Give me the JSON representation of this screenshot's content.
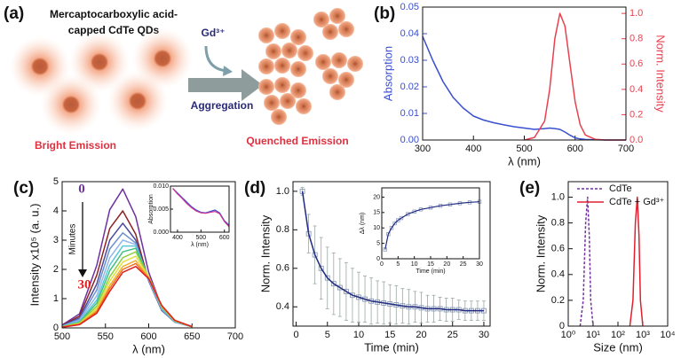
{
  "schematic": {
    "panel": "(a)",
    "title_lines": [
      "Mercaptocarboxylic acid-",
      "capped CdTe QDs"
    ],
    "ion": "Gd³⁺",
    "arrow_label": "Aggregation",
    "left_caption": "Bright Emission",
    "right_caption": "Quenched Emission"
  },
  "chart_data": [
    {
      "type": "line",
      "panel": "(b)",
      "xlabel": "λ (nm)",
      "ylabel": "Absorption",
      "y2label": "Norm. Intensity",
      "x": [
        300,
        320,
        340,
        360,
        380,
        400,
        420,
        440,
        460,
        480,
        500,
        520,
        540,
        550,
        560,
        570,
        580,
        590,
        600,
        610,
        620,
        640,
        660,
        700
      ],
      "xlim": [
        300,
        700
      ],
      "xticks": [
        300,
        400,
        500,
        600,
        700
      ],
      "ylim": [
        0,
        0.05
      ],
      "yticks": [
        {
          "value": 0,
          "label": "0.00"
        },
        {
          "value": 0.01,
          "label": "0.01"
        },
        {
          "value": 0.02,
          "label": "0.02"
        },
        {
          "value": 0.03,
          "label": "0.03"
        },
        {
          "value": 0.04,
          "label": "0.04"
        },
        {
          "value": 0.05,
          "label": "0.05"
        }
      ],
      "y2lim": [
        0,
        1.05
      ],
      "y2ticks": [
        {
          "value": 0,
          "label": "0.0"
        },
        0.2,
        0.4,
        0.6,
        0.8,
        {
          "value": 1,
          "label": "1.0"
        }
      ],
      "series": [
        {
          "color": "#3a4fd0",
          "values": [
            0.039,
            0.03,
            0.022,
            0.016,
            0.012,
            0.009,
            0.0075,
            0.0065,
            0.0057,
            0.005,
            0.0045,
            0.004,
            0.0043,
            0.0045,
            0.0043,
            0.004,
            0.003,
            0.0018,
            0.0008,
            0.0004,
            0.0002,
            0.0001,
            0,
            0
          ]
        },
        {
          "color": "#e8404f",
          "axis": "y2",
          "values": [
            null,
            null,
            null,
            null,
            null,
            null,
            null,
            null,
            null,
            null,
            0,
            0.02,
            0.15,
            0.4,
            0.8,
            1.0,
            0.9,
            0.6,
            0.3,
            0.12,
            0.04,
            0.005,
            0,
            0
          ]
        }
      ]
    },
    {
      "type": "line",
      "panel": "(c)",
      "xlabel": "λ (nm)",
      "ylabel": "Intensity x10⁵ (a. u.)",
      "annotations": [
        {
          "text": "0",
          "color": "#7030a0"
        },
        {
          "text": "30",
          "color": "#e02020"
        },
        {
          "text": "Minutes",
          "color": "#111111"
        }
      ],
      "x": [
        500,
        520,
        540,
        555,
        570,
        585,
        600,
        615,
        630,
        650
      ],
      "xlim": [
        500,
        700
      ],
      "xticks": [
        500,
        550,
        600,
        650,
        700
      ],
      "ylim": [
        0,
        5
      ],
      "yticks": [
        0,
        1,
        2,
        3,
        4,
        5
      ],
      "series": [
        {
          "color": "#7030a0",
          "values": [
            0.1,
            0.48,
            2.14,
            4.04,
            4.75,
            3.8,
            1.9,
            0.71,
            0.24,
            0.05
          ]
        },
        {
          "color": "#8b2323",
          "values": [
            0.08,
            0.4,
            1.8,
            3.4,
            4.0,
            3.2,
            1.6,
            0.6,
            0.2,
            0.04
          ]
        },
        {
          "color": "#4b4b9b",
          "values": [
            0.07,
            0.34,
            1.5,
            3.0,
            3.58,
            3.0,
            1.6,
            0.6,
            0.2,
            0.04
          ]
        },
        {
          "color": "#6a8fd0",
          "values": [
            0.06,
            0.3,
            1.3,
            2.7,
            3.25,
            2.9,
            1.6,
            0.62,
            0.2,
            0.04
          ]
        },
        {
          "color": "#8fb7e8",
          "values": [
            0.05,
            0.26,
            1.1,
            2.4,
            3.0,
            2.85,
            1.65,
            0.65,
            0.21,
            0.04
          ]
        },
        {
          "color": "#5bc8d8",
          "values": [
            0.05,
            0.22,
            0.95,
            2.15,
            2.8,
            2.8,
            1.7,
            0.68,
            0.22,
            0.04
          ]
        },
        {
          "color": "#40c080",
          "values": [
            0.04,
            0.19,
            0.85,
            1.95,
            2.6,
            2.72,
            1.72,
            0.7,
            0.23,
            0.04
          ]
        },
        {
          "color": "#90d040",
          "values": [
            0.04,
            0.17,
            0.75,
            1.75,
            2.4,
            2.6,
            1.75,
            0.72,
            0.24,
            0.04
          ]
        },
        {
          "color": "#e0e040",
          "values": [
            0.03,
            0.15,
            0.67,
            1.6,
            2.25,
            2.45,
            1.75,
            0.74,
            0.25,
            0.04
          ]
        },
        {
          "color": "#f0b030",
          "values": [
            0.03,
            0.13,
            0.6,
            1.45,
            2.1,
            2.3,
            1.72,
            0.75,
            0.25,
            0.04
          ]
        },
        {
          "color": "#f07020",
          "values": [
            0.03,
            0.12,
            0.55,
            1.35,
            2.0,
            2.2,
            1.7,
            0.76,
            0.26,
            0.04
          ]
        },
        {
          "color": "#e02020",
          "values": [
            0.02,
            0.11,
            0.5,
            1.25,
            1.9,
            2.1,
            1.68,
            0.77,
            0.26,
            0.04
          ]
        }
      ]
    },
    {
      "type": "line",
      "xlabel": "λ (nm)",
      "ylabel": "Absorption",
      "x": [
        380,
        400,
        420,
        440,
        460,
        480,
        500,
        520,
        540,
        560,
        580,
        600,
        620
      ],
      "xlim": [
        370,
        620
      ],
      "xticks": [
        400,
        500,
        600
      ],
      "ylim": [
        0,
        0.01
      ],
      "yticks": [
        {
          "value": 0,
          "label": "0.000"
        },
        0.005,
        {
          "value": 0.01,
          "label": "0.010"
        }
      ],
      "series": [
        {
          "color": "#3a4fd0",
          "values": [
            0.0095,
            0.0085,
            0.0075,
            0.0065,
            0.0055,
            0.0048,
            0.0043,
            0.0042,
            0.0045,
            0.0048,
            0.0042,
            0.0025,
            0.0015
          ]
        },
        {
          "color": "#d0308f",
          "values": [
            0.0095,
            0.0083,
            0.0073,
            0.0062,
            0.0053,
            0.0046,
            0.0042,
            0.0041,
            0.0043,
            0.0045,
            0.004,
            0.0023,
            0.0012
          ]
        }
      ]
    },
    {
      "type": "line",
      "panel": "(d)",
      "xlabel": "Time (min)",
      "ylabel": "Norm. Intensity",
      "x": [
        1,
        2,
        3,
        4,
        5,
        6,
        7,
        8,
        9,
        10,
        11,
        12,
        13,
        14,
        15,
        16,
        17,
        18,
        19,
        20,
        21,
        22,
        23,
        24,
        25,
        26,
        27,
        28,
        29,
        30
      ],
      "xlim": [
        -0.5,
        31
      ],
      "xticks": [
        0,
        5,
        10,
        15,
        20,
        25,
        30
      ],
      "ylim": [
        0.3,
        1.05
      ],
      "yticks": [
        0.4,
        0.6,
        0.8,
        {
          "value": 1,
          "label": "1.0"
        }
      ],
      "series": [
        {
          "color": "#1f2a80",
          "marker": "square",
          "marker_color": "#7f8fb0",
          "error_color": "#9aa8a0",
          "values": [
            1.0,
            0.78,
            0.67,
            0.6,
            0.55,
            0.52,
            0.5,
            0.48,
            0.46,
            0.45,
            0.44,
            0.43,
            0.425,
            0.42,
            0.415,
            0.41,
            0.405,
            0.4,
            0.4,
            0.395,
            0.39,
            0.39,
            0.39,
            0.385,
            0.385,
            0.385,
            0.38,
            0.38,
            0.38,
            0.38
          ],
          "errors": [
            0.02,
            0.1,
            0.15,
            0.16,
            0.16,
            0.16,
            0.15,
            0.15,
            0.14,
            0.13,
            0.12,
            0.12,
            0.11,
            0.11,
            0.1,
            0.1,
            0.09,
            0.09,
            0.08,
            0.08,
            0.07,
            0.07,
            0.06,
            0.06,
            0.06,
            0.05,
            0.05,
            0.05,
            0.05,
            0.05
          ]
        }
      ]
    },
    {
      "type": "line",
      "xlabel": "Time (min)",
      "ylabel": "Δλ (nm)",
      "x": [
        1,
        2,
        3,
        4,
        5,
        6,
        8,
        10,
        12,
        15,
        18,
        21,
        24,
        27,
        30
      ],
      "xlim": [
        0,
        30
      ],
      "xticks": [
        0,
        5,
        10,
        15,
        20,
        25,
        30
      ],
      "ylim": [
        0,
        23
      ],
      "yticks": [
        0,
        5,
        10,
        15,
        20
      ],
      "series": [
        {
          "color": "#1f2a80",
          "marker": "square",
          "marker_color": "#8f9fc0",
          "values": [
            3,
            8,
            10,
            11.5,
            12.5,
            13.2,
            14.5,
            15.3,
            16,
            16.6,
            17.2,
            17.6,
            18,
            18.3,
            18.5
          ]
        }
      ]
    },
    {
      "type": "line",
      "panel": "(e)",
      "xlabel": "Size (nm)",
      "ylabel": "Norm. Intensity",
      "xlog": true,
      "legend": "top-right",
      "xlim": [
        1,
        10000
      ],
      "xticks": [
        {
          "value": 1,
          "label": "10⁰"
        },
        {
          "value": 10,
          "label": "10¹"
        },
        {
          "value": 100,
          "label": "10²"
        },
        {
          "value": 1000,
          "label": "10³"
        },
        {
          "value": 10000,
          "label": "10⁴"
        }
      ],
      "ylim": [
        0,
        1.12
      ],
      "yticks": [
        0,
        0.2,
        0.4,
        0.6,
        0.8,
        {
          "value": 1,
          "label": "1.0"
        }
      ],
      "series": [
        {
          "name": "CdTe",
          "color": "#7030a0",
          "dash": true,
          "x": [
            3,
            4,
            5,
            6,
            7,
            8,
            10
          ],
          "values": [
            0,
            0.2,
            0.8,
            1.0,
            0.7,
            0.2,
            0
          ]
        },
        {
          "name": "CdTe + Gd³⁺",
          "color": "#e02030",
          "x": [
            300,
            400,
            500,
            600,
            700,
            800,
            1000
          ],
          "values": [
            0,
            0.2,
            0.8,
            1.0,
            0.7,
            0.2,
            0
          ]
        }
      ]
    }
  ]
}
